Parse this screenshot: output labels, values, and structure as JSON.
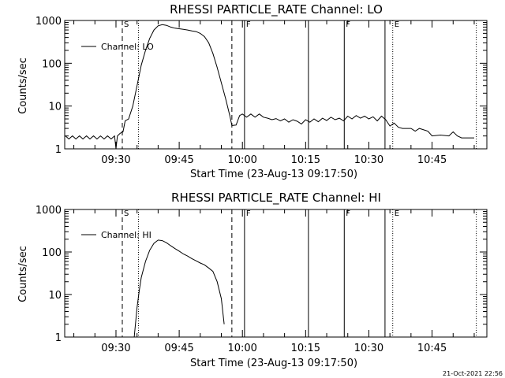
{
  "footer_timestamp": "21-Oct-2021 22:56",
  "chart_data": [
    {
      "type": "line",
      "title": "RHESSI PARTICLE_RATE Channel: LO",
      "xlabel": "Start Time (23-Aug-13 09:17:50)",
      "ylabel": "Counts/sec",
      "yscale": "log",
      "ylim": [
        1,
        1000
      ],
      "yticks": [
        "1",
        "10",
        "100",
        "1000"
      ],
      "xlim": [
        "09:17:50",
        "10:58:00"
      ],
      "xticks": [
        "09:30",
        "09:45",
        "10:00",
        "10:15",
        "10:30",
        "10:45"
      ],
      "legend": {
        "label": "Channel: LO",
        "position": "top-left"
      },
      "markers": [
        {
          "label": "S",
          "time": "09:31:30",
          "style": "dashed"
        },
        {
          "label": "",
          "time": "09:35:20",
          "style": "dotted"
        },
        {
          "label": "",
          "time": "09:57:30",
          "style": "dashed"
        },
        {
          "label": "F",
          "time": "10:00:30",
          "style": "solid"
        },
        {
          "label": "",
          "time": "10:15:40",
          "style": "solid"
        },
        {
          "label": "F",
          "time": "10:24:10",
          "style": "solid"
        },
        {
          "label": "",
          "time": "10:33:50",
          "style": "solid"
        },
        {
          "label": "E",
          "time": "10:35:40",
          "style": "dotted"
        },
        {
          "label": "",
          "time": "10:55:30",
          "style": "dotted"
        }
      ],
      "series": [
        {
          "name": "Channel: LO",
          "points": [
            [
              "09:18:00",
              2
            ],
            [
              "09:18:50",
              1.7
            ],
            [
              "09:19:40",
              2
            ],
            [
              "09:20:30",
              1.7
            ],
            [
              "09:21:20",
              2
            ],
            [
              "09:22:10",
              1.7
            ],
            [
              "09:23:00",
              2
            ],
            [
              "09:23:50",
              1.7
            ],
            [
              "09:24:40",
              2
            ],
            [
              "09:25:30",
              1.7
            ],
            [
              "09:26:20",
              2
            ],
            [
              "09:27:10",
              1.7
            ],
            [
              "09:28:00",
              2
            ],
            [
              "09:28:50",
              1.7
            ],
            [
              "09:29:40",
              2
            ],
            [
              "09:30:00",
              1
            ],
            [
              "09:30:20",
              2
            ],
            [
              "09:31:00",
              2.3
            ],
            [
              "09:31:40",
              2.5
            ],
            [
              "09:32:10",
              4.5
            ],
            [
              "09:33:00",
              5
            ],
            [
              "09:34:00",
              10
            ],
            [
              "09:35:00",
              30
            ],
            [
              "09:36:00",
              90
            ],
            [
              "09:37:00",
              200
            ],
            [
              "09:38:00",
              380
            ],
            [
              "09:39:00",
              600
            ],
            [
              "09:40:00",
              750
            ],
            [
              "09:41:00",
              800
            ],
            [
              "09:42:00",
              770
            ],
            [
              "09:43:00",
              700
            ],
            [
              "09:44:00",
              660
            ],
            [
              "09:45:00",
              640
            ],
            [
              "09:46:00",
              620
            ],
            [
              "09:47:00",
              600
            ],
            [
              "09:48:00",
              570
            ],
            [
              "09:49:00",
              550
            ],
            [
              "09:50:00",
              500
            ],
            [
              "09:51:00",
              420
            ],
            [
              "09:52:00",
              300
            ],
            [
              "09:53:00",
              170
            ],
            [
              "09:54:00",
              80
            ],
            [
              "09:55:00",
              35
            ],
            [
              "09:56:00",
              15
            ],
            [
              "09:57:00",
              6
            ],
            [
              "09:57:30",
              3.5
            ],
            [
              "09:58:30",
              3.6
            ],
            [
              "09:59:20",
              6
            ],
            [
              "10:00:00",
              6.5
            ],
            [
              "10:01:00",
              5.5
            ],
            [
              "10:02:00",
              6.5
            ],
            [
              "10:03:00",
              5.5
            ],
            [
              "10:04:00",
              6.5
            ],
            [
              "10:05:00",
              5.5
            ],
            [
              "10:06:00",
              5.2
            ],
            [
              "10:07:00",
              4.8
            ],
            [
              "10:08:00",
              5.1
            ],
            [
              "10:09:00",
              4.5
            ],
            [
              "10:10:00",
              5
            ],
            [
              "10:11:00",
              4.2
            ],
            [
              "10:12:00",
              4.8
            ],
            [
              "10:13:00",
              4.4
            ],
            [
              "10:14:00",
              3.8
            ],
            [
              "10:15:00",
              4.8
            ],
            [
              "10:16:00",
              4.2
            ],
            [
              "10:17:00",
              5
            ],
            [
              "10:18:00",
              4.3
            ],
            [
              "10:19:00",
              5.2
            ],
            [
              "10:20:00",
              4.6
            ],
            [
              "10:21:00",
              5.5
            ],
            [
              "10:22:00",
              4.8
            ],
            [
              "10:23:00",
              5.2
            ],
            [
              "10:24:00",
              4.5
            ],
            [
              "10:25:00",
              5.8
            ],
            [
              "10:26:00",
              5
            ],
            [
              "10:27:00",
              6
            ],
            [
              "10:28:00",
              5.2
            ],
            [
              "10:29:00",
              5.8
            ],
            [
              "10:30:00",
              5
            ],
            [
              "10:31:00",
              5.6
            ],
            [
              "10:32:00",
              4.5
            ],
            [
              "10:33:00",
              5.8
            ],
            [
              "10:34:00",
              4.8
            ],
            [
              "10:35:00",
              3.4
            ],
            [
              "10:36:00",
              4
            ],
            [
              "10:37:00",
              3.2
            ],
            [
              "10:38:00",
              3
            ],
            [
              "10:40:00",
              3
            ],
            [
              "10:41:00",
              2.6
            ],
            [
              "10:42:00",
              3
            ],
            [
              "10:44:00",
              2.6
            ],
            [
              "10:45:00",
              2
            ],
            [
              "10:47:00",
              2.1
            ],
            [
              "10:49:00",
              2
            ],
            [
              "10:50:00",
              2.5
            ],
            [
              "10:51:00",
              2
            ],
            [
              "10:52:00",
              1.8
            ],
            [
              "10:55:00",
              1.8
            ]
          ]
        }
      ]
    },
    {
      "type": "line",
      "title": "RHESSI PARTICLE_RATE Channel: HI",
      "xlabel": "Start Time (23-Aug-13 09:17:50)",
      "ylabel": "Counts/sec",
      "yscale": "log",
      "ylim": [
        1,
        1000
      ],
      "yticks": [
        "1",
        "10",
        "100",
        "1000"
      ],
      "xlim": [
        "09:17:50",
        "10:58:00"
      ],
      "xticks": [
        "09:30",
        "09:45",
        "10:00",
        "10:15",
        "10:30",
        "10:45"
      ],
      "legend": {
        "label": "Channel: HI",
        "position": "top-left"
      },
      "markers": [
        {
          "label": "S",
          "time": "09:31:30",
          "style": "dashed"
        },
        {
          "label": "",
          "time": "09:35:20",
          "style": "dotted"
        },
        {
          "label": "",
          "time": "09:57:30",
          "style": "dashed"
        },
        {
          "label": "F",
          "time": "10:00:30",
          "style": "solid"
        },
        {
          "label": "",
          "time": "10:15:40",
          "style": "solid"
        },
        {
          "label": "F",
          "time": "10:24:10",
          "style": "solid"
        },
        {
          "label": "",
          "time": "10:33:50",
          "style": "solid"
        },
        {
          "label": "E",
          "time": "10:35:40",
          "style": "dotted"
        },
        {
          "label": "",
          "time": "10:55:30",
          "style": "dotted"
        }
      ],
      "series": [
        {
          "name": "Channel: HI",
          "points": [
            [
              "09:34:20",
              1
            ],
            [
              "09:35:00",
              5
            ],
            [
              "09:35:30",
              12
            ],
            [
              "09:36:00",
              25
            ],
            [
              "09:37:00",
              60
            ],
            [
              "09:38:00",
              110
            ],
            [
              "09:39:00",
              160
            ],
            [
              "09:40:00",
              190
            ],
            [
              "09:41:00",
              185
            ],
            [
              "09:42:00",
              165
            ],
            [
              "09:43:00",
              140
            ],
            [
              "09:44:00",
              120
            ],
            [
              "09:45:00",
              105
            ],
            [
              "09:46:00",
              90
            ],
            [
              "09:47:00",
              80
            ],
            [
              "09:48:00",
              70
            ],
            [
              "09:49:00",
              62
            ],
            [
              "09:50:00",
              55
            ],
            [
              "09:51:00",
              50
            ],
            [
              "09:52:00",
              42
            ],
            [
              "09:53:00",
              35
            ],
            [
              "09:54:00",
              20
            ],
            [
              "09:55:00",
              8
            ],
            [
              "09:55:40",
              2
            ]
          ]
        }
      ]
    }
  ]
}
